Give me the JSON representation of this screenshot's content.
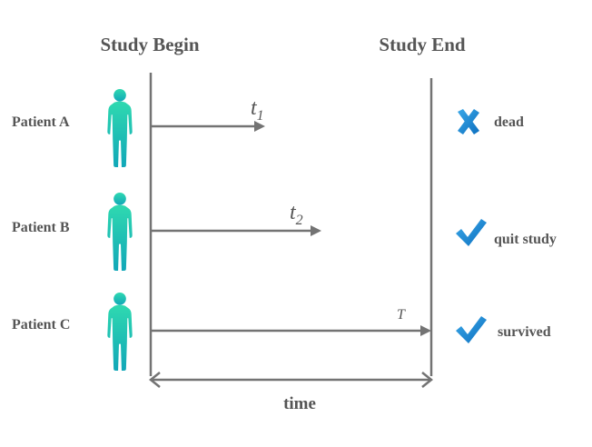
{
  "headers": {
    "begin": "Study Begin",
    "end": "Study End"
  },
  "patients": [
    {
      "name": "Patient A",
      "time_symbol": "t",
      "time_sub": "1",
      "status": "dead",
      "status_icon": "cross-icon"
    },
    {
      "name": "Patient B",
      "time_symbol": "t",
      "time_sub": "2",
      "status": "quit study",
      "status_icon": "check-icon"
    },
    {
      "name": "Patient C",
      "time_symbol": "T",
      "time_sub": "",
      "status": "survived",
      "status_icon": "check-icon"
    }
  ],
  "axis": {
    "label": "time"
  },
  "colors": {
    "line": "#737373",
    "text": "#555555",
    "person": "#1ec6b4",
    "mark": "#1a8ad6"
  }
}
